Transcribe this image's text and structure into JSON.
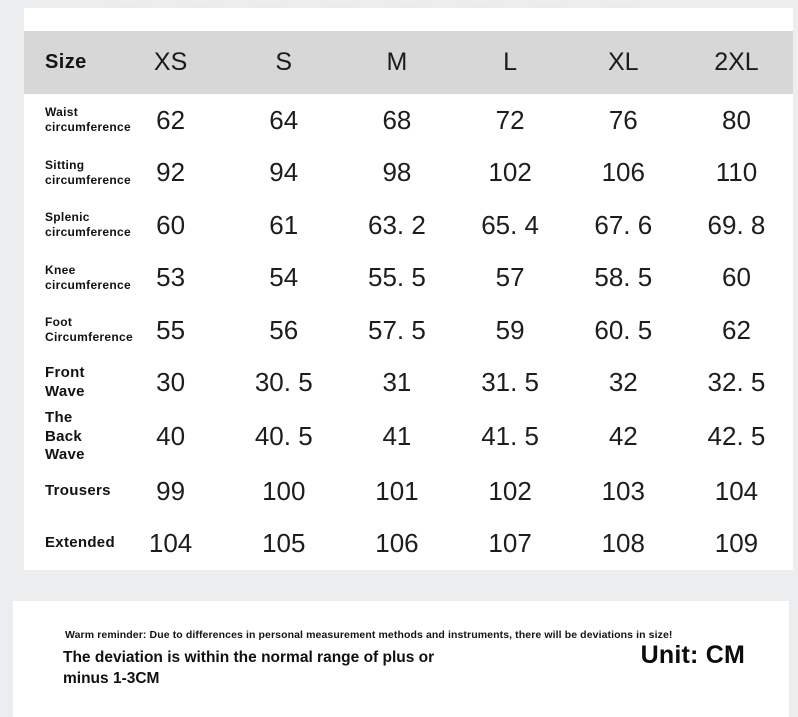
{
  "chart_data": {
    "type": "table",
    "corner_label": "Size",
    "columns": [
      "XS",
      "S",
      "M",
      "L",
      "XL",
      "2XL"
    ],
    "rows": [
      {
        "label": "Waist\ncircumference",
        "label_size": "small",
        "values": [
          "62",
          "64",
          "68",
          "72",
          "76",
          "80"
        ]
      },
      {
        "label": "Sitting\ncircumference",
        "label_size": "small",
        "values": [
          "92",
          "94",
          "98",
          "102",
          "106",
          "110"
        ]
      },
      {
        "label": "Splenic\ncircumference",
        "label_size": "small",
        "values": [
          "60",
          "61",
          "63. 2",
          "65. 4",
          "67. 6",
          "69. 8"
        ]
      },
      {
        "label": "Knee\ncircumference",
        "label_size": "small",
        "values": [
          "53",
          "54",
          "55. 5",
          "57",
          "58. 5",
          "60"
        ]
      },
      {
        "label": "Foot\nCircumference",
        "label_size": "small",
        "values": [
          "55",
          "56",
          "57. 5",
          "59",
          "60. 5",
          "62"
        ]
      },
      {
        "label": "Front\nWave",
        "label_size": "large",
        "values": [
          "30",
          "30. 5",
          "31",
          "31. 5",
          "32",
          "32. 5"
        ]
      },
      {
        "label": "The Back\nWave",
        "label_size": "large",
        "values": [
          "40",
          "40. 5",
          "41",
          "41. 5",
          "42",
          "42. 5"
        ]
      },
      {
        "label": "Trousers",
        "label_size": "large",
        "values": [
          "99",
          "100",
          "101",
          "102",
          "103",
          "104"
        ]
      },
      {
        "label": "Extended",
        "label_size": "large",
        "values": [
          "104",
          "105",
          "106",
          "107",
          "108",
          "109"
        ]
      }
    ],
    "unit": "CM"
  },
  "footer": {
    "reminder": "Warm reminder: Due to differences in personal measurement methods and instruments, there will be deviations in size!",
    "deviation_note": "The deviation is within the normal range of plus or minus 1-3CM",
    "unit_label": "Unit: CM"
  },
  "colors": {
    "page_bg": "#ecedee",
    "card_bg": "#ffffff",
    "header_band": "#d7d7d8",
    "text": "#161618"
  }
}
